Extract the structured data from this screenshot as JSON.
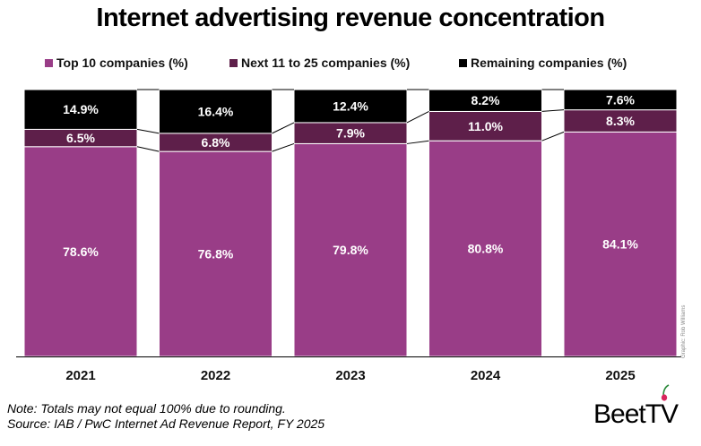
{
  "title": "Internet advertising revenue concentration",
  "legend": [
    {
      "label": "Top 10 companies (%)",
      "color": "#993d87"
    },
    {
      "label": "Next 11 to 25 companies (%)",
      "color": "#5e1f4a"
    },
    {
      "label": "Remaining companies (%)",
      "color": "#000000"
    }
  ],
  "chart_data": {
    "type": "bar",
    "stacked": true,
    "categories": [
      "2021",
      "2022",
      "2023",
      "2024",
      "2025"
    ],
    "series": [
      {
        "name": "Top 10 companies (%)",
        "color": "#993d87",
        "values": [
          78.6,
          76.8,
          79.8,
          80.8,
          84.1
        ],
        "labels": [
          "78.6%",
          "76.8%",
          "79.8%",
          "80.8%",
          "84.1%"
        ]
      },
      {
        "name": "Next 11 to 25 companies (%)",
        "color": "#5e1f4a",
        "values": [
          6.5,
          6.8,
          7.9,
          11.0,
          8.3
        ],
        "labels": [
          "6.5%",
          "6.8%",
          "7.9%",
          "11.0%",
          "8.3%"
        ]
      },
      {
        "name": "Remaining companies (%)",
        "color": "#000000",
        "values": [
          14.9,
          16.4,
          12.4,
          8.2,
          7.6
        ],
        "labels": [
          "14.9%",
          "16.4%",
          "12.4%",
          "8.2%",
          "7.6%"
        ]
      }
    ],
    "ylim": [
      0,
      100
    ],
    "grid": false,
    "legend_position": "top"
  },
  "note": {
    "line1": "Note: Totals may not equal 100% due to rounding.",
    "line2": "Source: IAB / PwC Internet Ad Revenue Report, FY 2025"
  },
  "credit": "Graphic: Rob Williams",
  "logo": {
    "text": "BeetTV",
    "color": "#d8265d"
  }
}
